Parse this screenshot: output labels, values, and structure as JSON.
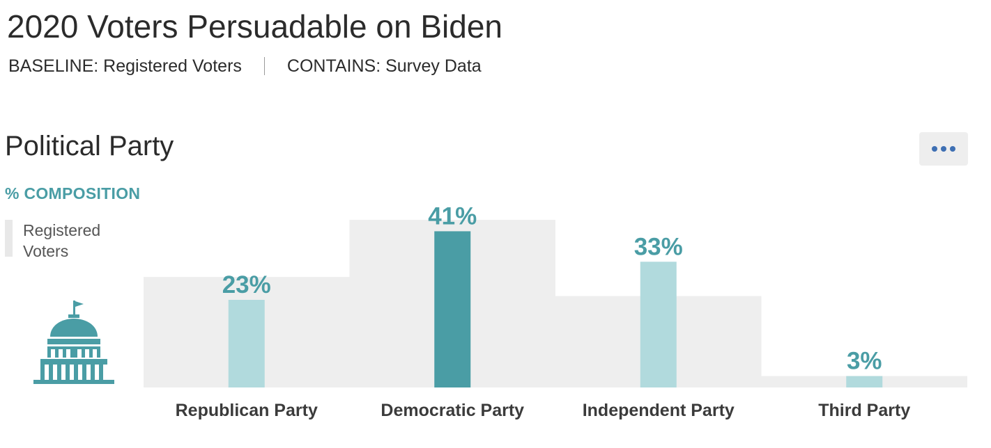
{
  "header": {
    "title": "2020 Voters Persuadable on Biden",
    "baseline_label": "BASELINE: Registered Voters",
    "contains_label": "CONTAINS: Survey Data"
  },
  "section": {
    "title": "Political Party",
    "subtitle": "% COMPOSITION",
    "more_icon": "more-horizontal-icon",
    "legend_label": "Registered Voters",
    "side_icon": "capitol-building-icon"
  },
  "colors": {
    "baseline": "#eeeeee",
    "bar_light": "#b1dadd",
    "bar_highlight": "#4a9da5",
    "value_label": "#4a9da5",
    "category_label": "#3b3b3b",
    "more_dots": "#3e6fb3"
  },
  "chart_data": {
    "type": "bar",
    "title": "Political Party",
    "subtitle": "% COMPOSITION",
    "categories": [
      "Republican Party",
      "Democratic Party",
      "Independent Party",
      "Third Party"
    ],
    "series": [
      {
        "name": "",
        "values": [
          23,
          41,
          33,
          3
        ],
        "labels": [
          "23%",
          "41%",
          "33%",
          "3%"
        ]
      },
      {
        "name": "Registered Voters",
        "values": [
          29,
          44,
          24,
          3
        ]
      }
    ],
    "highlighted_category": "Democratic Party",
    "ylim": [
      0,
      44
    ],
    "grid": false,
    "legend": "left"
  }
}
